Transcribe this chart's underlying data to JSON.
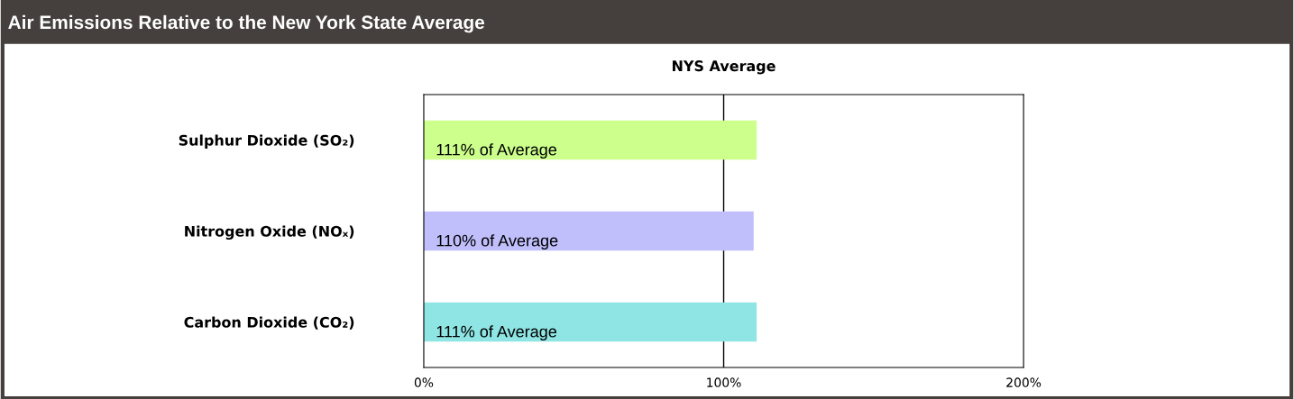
{
  "chart_data": {
    "type": "bar",
    "orientation": "horizontal",
    "title": "Air Emissions Relative to the New York State Average",
    "categories": [
      "Sulphur Dioxide (SO₂)",
      "Nitrogen Oxide (NOₓ)",
      "Carbon Dioxide (CO₂)"
    ],
    "values": [
      111,
      110,
      111
    ],
    "colors": [
      "#ccff8c",
      "#c0bffc",
      "#8ee5e3"
    ],
    "value_labels": [
      "111% of Average",
      "110% of Average",
      "111% of Average"
    ],
    "xlim": [
      0,
      200
    ],
    "xticks": [
      {
        "value": 0,
        "label": "0%"
      },
      {
        "value": 100,
        "label": "100%"
      },
      {
        "value": 200,
        "label": "200%"
      }
    ],
    "ref_lines": [
      {
        "axis": "x",
        "value": 100,
        "label": "NYS Average",
        "color": "#000000"
      }
    ],
    "grid": false,
    "legend": false
  }
}
